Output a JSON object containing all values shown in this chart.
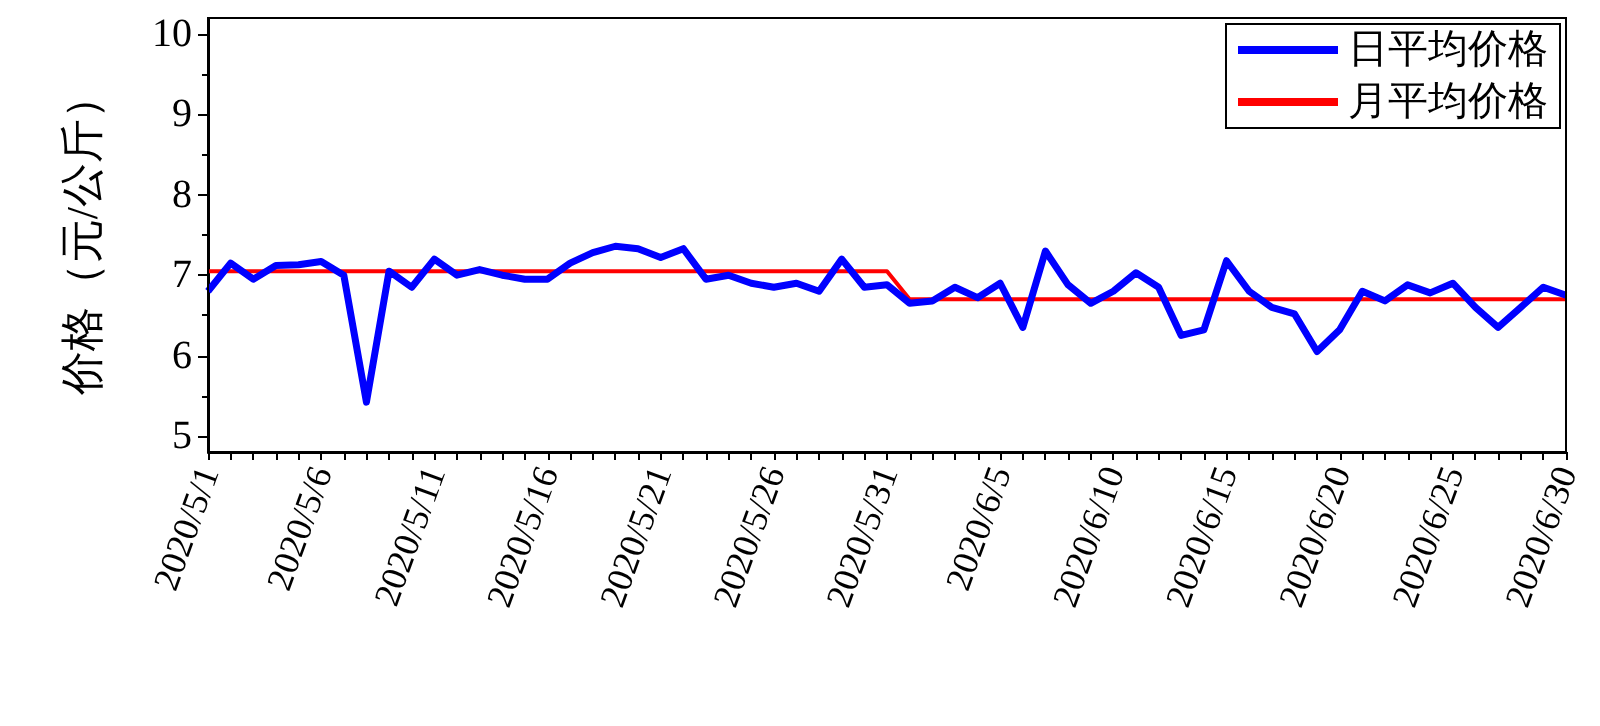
{
  "chart_data": {
    "type": "line",
    "ylabel": "价格（元/公斤）",
    "categories": [
      "2020/5/1",
      null,
      null,
      null,
      null,
      "2020/5/6",
      null,
      null,
      null,
      null,
      "2020/5/11",
      null,
      null,
      null,
      null,
      "2020/5/16",
      null,
      null,
      null,
      null,
      "2020/5/21",
      null,
      null,
      null,
      null,
      "2020/5/26",
      null,
      null,
      null,
      null,
      "2020/5/31",
      null,
      null,
      null,
      null,
      "2020/6/5",
      null,
      null,
      null,
      null,
      "2020/6/10",
      null,
      null,
      null,
      null,
      "2020/6/15",
      null,
      null,
      null,
      null,
      "2020/6/20",
      null,
      null,
      null,
      null,
      "2020/6/25",
      null,
      null,
      null,
      null,
      "2020/6/30"
    ],
    "series": [
      {
        "name": "日平均价格",
        "color": "#0000ff",
        "values": [
          6.8,
          7.15,
          6.95,
          7.12,
          7.13,
          7.17,
          7.0,
          5.42,
          7.05,
          6.85,
          7.2,
          7.0,
          7.07,
          7.0,
          6.95,
          6.95,
          7.15,
          7.28,
          7.36,
          7.33,
          7.22,
          7.33,
          6.95,
          7.0,
          6.9,
          6.85,
          6.9,
          6.8,
          7.2,
          6.85,
          6.88,
          6.65,
          6.68,
          6.85,
          6.72,
          6.9,
          6.35,
          7.3,
          6.88,
          6.65,
          6.8,
          7.03,
          6.85,
          6.25,
          6.32,
          7.18,
          6.8,
          6.6,
          6.52,
          6.05,
          6.32,
          6.8,
          6.68,
          6.88,
          6.78,
          6.9,
          6.6,
          6.35,
          6.6,
          6.85,
          6.75
        ]
      },
      {
        "name": "月平均价格",
        "color": "#ff0000",
        "values": [
          7.05,
          7.05,
          7.05,
          7.05,
          7.05,
          7.05,
          7.05,
          7.05,
          7.05,
          7.05,
          7.05,
          7.05,
          7.05,
          7.05,
          7.05,
          7.05,
          7.05,
          7.05,
          7.05,
          7.05,
          7.05,
          7.05,
          7.05,
          7.05,
          7.05,
          7.05,
          7.05,
          7.05,
          7.05,
          7.05,
          7.05,
          6.7,
          6.7,
          6.7,
          6.7,
          6.7,
          6.7,
          6.7,
          6.7,
          6.7,
          6.7,
          6.7,
          6.7,
          6.7,
          6.7,
          6.7,
          6.7,
          6.7,
          6.7,
          6.7,
          6.7,
          6.7,
          6.7,
          6.7,
          6.7,
          6.7,
          6.7,
          6.7,
          6.7,
          6.7,
          6.7
        ]
      }
    ],
    "ylim": [
      4.8,
      10.2
    ],
    "yticks": [
      5,
      6,
      7,
      8,
      9,
      10
    ],
    "grid": false,
    "legend": "top right",
    "marker": "none",
    "line_style": "solid"
  }
}
